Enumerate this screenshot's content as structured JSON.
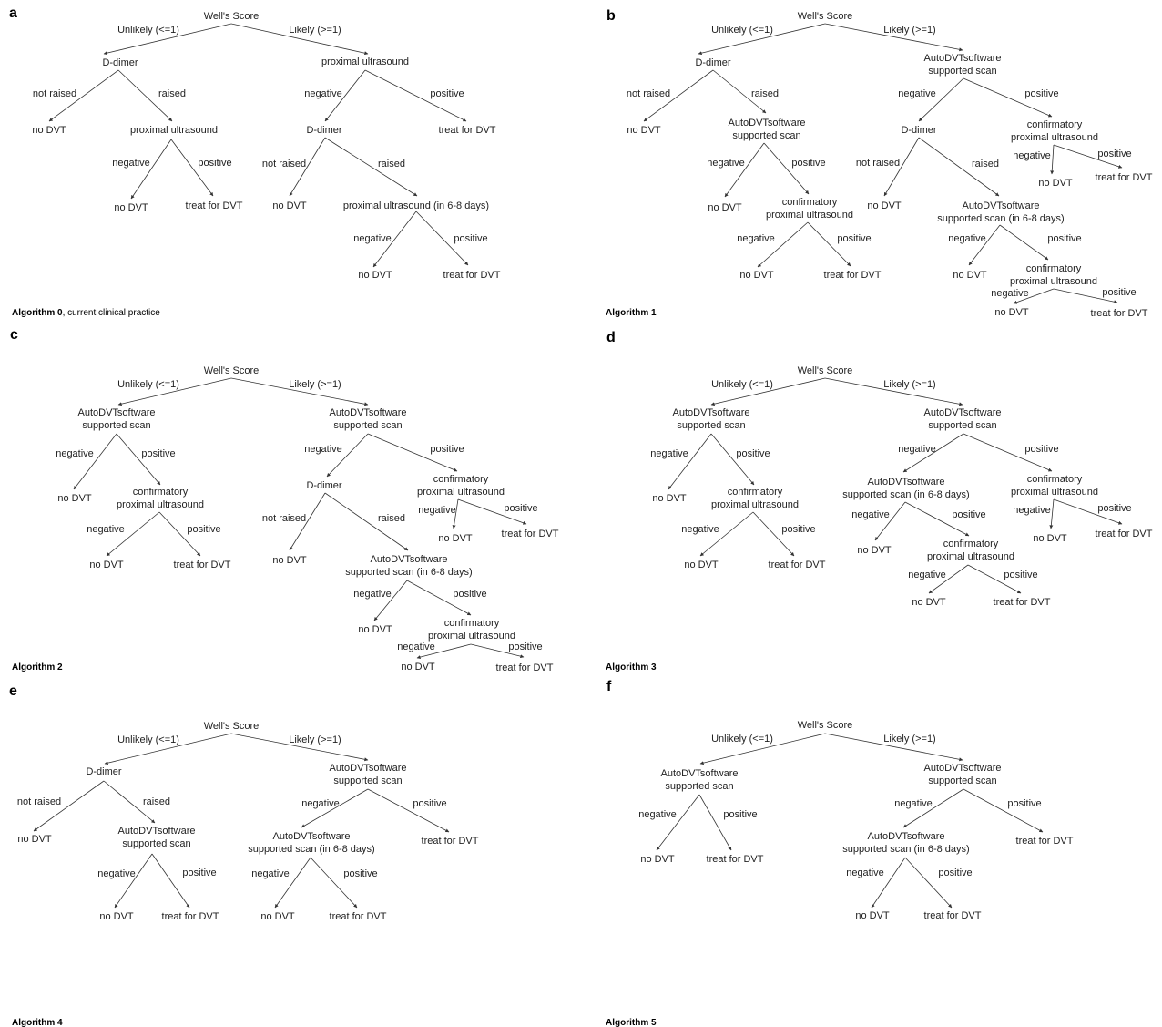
{
  "panels": [
    {
      "letter": "a",
      "caption_bold": "Algorithm 0",
      "caption_rest": ", current clinical practice",
      "nodes": [
        {
          "id": "root",
          "text": "Well's Score"
        },
        {
          "id": "el_unlikely",
          "text": "Unlikely (<=1)"
        },
        {
          "id": "el_likely",
          "text": "Likely (>=1)"
        },
        {
          "id": "ddimer1",
          "text": "D-dimer"
        },
        {
          "id": "el_notraised1",
          "text": "not raised"
        },
        {
          "id": "el_raised1",
          "text": "raised"
        },
        {
          "id": "nodvt1",
          "text": "no DVT"
        },
        {
          "id": "us1",
          "text": "proximal ultrasound"
        },
        {
          "id": "el_neg1",
          "text": "negative"
        },
        {
          "id": "el_pos1",
          "text": "positive"
        },
        {
          "id": "nodvt2",
          "text": "no DVT"
        },
        {
          "id": "treat1",
          "text": "treat for DVT"
        },
        {
          "id": "us2",
          "text": "proximal ultrasound"
        },
        {
          "id": "el_neg2",
          "text": "negative"
        },
        {
          "id": "el_pos2",
          "text": "positive"
        },
        {
          "id": "ddimer2",
          "text": "D-dimer"
        },
        {
          "id": "treat2",
          "text": "treat for DVT"
        },
        {
          "id": "el_notraised2",
          "text": "not raised"
        },
        {
          "id": "el_raised2",
          "text": "raised"
        },
        {
          "id": "nodvt3",
          "text": "no DVT"
        },
        {
          "id": "us3",
          "text": "proximal ultrasound (in 6-8 days)"
        },
        {
          "id": "el_neg3",
          "text": "negative"
        },
        {
          "id": "el_pos3",
          "text": "positive"
        },
        {
          "id": "nodvt4",
          "text": "no DVT"
        },
        {
          "id": "treat3",
          "text": "treat for DVT"
        }
      ]
    },
    {
      "letter": "b",
      "caption_bold": "Algorithm 1",
      "caption_rest": "",
      "nodes": [
        {
          "id": "root",
          "text": "Well's Score"
        },
        {
          "id": "el_unlikely",
          "text": "Unlikely (<=1)"
        },
        {
          "id": "el_likely",
          "text": "Likely (>=1)"
        },
        {
          "id": "ddimer1",
          "text": "D-dimer"
        },
        {
          "id": "el_notraised1",
          "text": "not raised"
        },
        {
          "id": "el_raised1",
          "text": "raised"
        },
        {
          "id": "nodvt1",
          "text": "no DVT"
        },
        {
          "id": "scan1",
          "text": "AutoDVTsoftware\nsupported scan"
        },
        {
          "id": "el_neg1",
          "text": "negative"
        },
        {
          "id": "el_pos1",
          "text": "positive"
        },
        {
          "id": "nodvt2",
          "text": "no DVT"
        },
        {
          "id": "conf1",
          "text": "confirmatory\nproximal ultrasound"
        },
        {
          "id": "el_neg1b",
          "text": "negative"
        },
        {
          "id": "el_pos1b",
          "text": "positive"
        },
        {
          "id": "nodvt3",
          "text": "no DVT"
        },
        {
          "id": "treat1",
          "text": "treat for DVT"
        },
        {
          "id": "scan2",
          "text": "AutoDVTsoftware\nsupported scan"
        },
        {
          "id": "el_neg2",
          "text": "negative"
        },
        {
          "id": "el_pos2",
          "text": "positive"
        },
        {
          "id": "ddimer2",
          "text": "D-dimer"
        },
        {
          "id": "conf2",
          "text": "confirmatory\nproximal ultrasound"
        },
        {
          "id": "el_neg2b",
          "text": "negative"
        },
        {
          "id": "el_pos2b",
          "text": "positive"
        },
        {
          "id": "nodvt4",
          "text": "no DVT"
        },
        {
          "id": "treat2",
          "text": "treat for DVT"
        },
        {
          "id": "el_notraised2",
          "text": "not raised"
        },
        {
          "id": "el_raised2",
          "text": "raised"
        },
        {
          "id": "nodvt5",
          "text": "no DVT"
        },
        {
          "id": "scan3",
          "text": "AutoDVTsoftware\nsupported scan (in 6-8 days)"
        },
        {
          "id": "el_neg3",
          "text": "negative"
        },
        {
          "id": "el_pos3",
          "text": "positive"
        },
        {
          "id": "nodvt6",
          "text": "no DVT"
        },
        {
          "id": "conf3",
          "text": "confirmatory\nproximal ultrasound"
        },
        {
          "id": "el_neg3b",
          "text": "negative"
        },
        {
          "id": "el_pos3b",
          "text": "positive"
        },
        {
          "id": "nodvt7",
          "text": "no DVT"
        },
        {
          "id": "treat3",
          "text": "treat for DVT"
        }
      ]
    },
    {
      "letter": "c",
      "caption_bold": "Algorithm 2",
      "caption_rest": "",
      "nodes": [
        {
          "id": "root",
          "text": "Well's Score"
        },
        {
          "id": "el_unlikely",
          "text": "Unlikely (<=1)"
        },
        {
          "id": "el_likely",
          "text": "Likely (>=1)"
        },
        {
          "id": "scan1",
          "text": "AutoDVTsoftware\nsupported scan"
        },
        {
          "id": "el_neg1",
          "text": "negative"
        },
        {
          "id": "el_pos1",
          "text": "positive"
        },
        {
          "id": "nodvt1",
          "text": "no DVT"
        },
        {
          "id": "conf1",
          "text": "confirmatory\nproximal ultrasound"
        },
        {
          "id": "el_neg1b",
          "text": "negative"
        },
        {
          "id": "el_pos1b",
          "text": "positive"
        },
        {
          "id": "nodvt2",
          "text": "no DVT"
        },
        {
          "id": "treat1",
          "text": "treat for DVT"
        },
        {
          "id": "scan2",
          "text": "AutoDVTsoftware\nsupported scan"
        },
        {
          "id": "el_neg2",
          "text": "negative"
        },
        {
          "id": "el_pos2",
          "text": "positive"
        },
        {
          "id": "ddimer1",
          "text": "D-dimer"
        },
        {
          "id": "conf2",
          "text": "confirmatory\nproximal ultrasound"
        },
        {
          "id": "el_neg2b",
          "text": "negative"
        },
        {
          "id": "el_pos2b",
          "text": "positive"
        },
        {
          "id": "nodvt3",
          "text": "no DVT"
        },
        {
          "id": "treat2",
          "text": "treat for DVT"
        },
        {
          "id": "el_notraised1",
          "text": "not raised"
        },
        {
          "id": "el_raised1",
          "text": "raised"
        },
        {
          "id": "nodvt4",
          "text": "no DVT"
        },
        {
          "id": "scan3",
          "text": "AutoDVTsoftware\nsupported scan (in 6-8 days)"
        },
        {
          "id": "el_neg3",
          "text": "negative"
        },
        {
          "id": "el_pos3",
          "text": "positive"
        },
        {
          "id": "nodvt5",
          "text": "no DVT"
        },
        {
          "id": "conf3",
          "text": "confirmatory\nproximal ultrasound"
        },
        {
          "id": "el_neg3b",
          "text": "negative"
        },
        {
          "id": "el_pos3b",
          "text": "positive"
        },
        {
          "id": "nodvt6",
          "text": "no DVT"
        },
        {
          "id": "treat3",
          "text": "treat for DVT"
        }
      ]
    },
    {
      "letter": "d",
      "caption_bold": "Algorithm 3",
      "caption_rest": "",
      "nodes": [
        {
          "id": "root",
          "text": "Well's Score"
        },
        {
          "id": "el_unlikely",
          "text": "Unlikely (<=1)"
        },
        {
          "id": "el_likely",
          "text": "Likely (>=1)"
        },
        {
          "id": "scan1",
          "text": "AutoDVTsoftware\nsupported scan"
        },
        {
          "id": "el_neg1",
          "text": "negative"
        },
        {
          "id": "el_pos1",
          "text": "positive"
        },
        {
          "id": "nodvt1",
          "text": "no DVT"
        },
        {
          "id": "conf1",
          "text": "confirmatory\nproximal ultrasound"
        },
        {
          "id": "el_neg1b",
          "text": "negative"
        },
        {
          "id": "el_pos1b",
          "text": "positive"
        },
        {
          "id": "nodvt2",
          "text": "no DVT"
        },
        {
          "id": "treat1",
          "text": "treat for DVT"
        },
        {
          "id": "scan2",
          "text": "AutoDVTsoftware\nsupported scan"
        },
        {
          "id": "el_neg2",
          "text": "negative"
        },
        {
          "id": "el_pos2",
          "text": "positive"
        },
        {
          "id": "scan3",
          "text": "AutoDVTsoftware\nsupported scan (in 6-8 days)"
        },
        {
          "id": "conf2",
          "text": "confirmatory\nproximal ultrasound"
        },
        {
          "id": "el_neg2b",
          "text": "negative"
        },
        {
          "id": "el_pos2b",
          "text": "positive"
        },
        {
          "id": "nodvt3",
          "text": "no DVT"
        },
        {
          "id": "treat2",
          "text": "treat for DVT"
        },
        {
          "id": "el_neg3",
          "text": "negative"
        },
        {
          "id": "el_pos3",
          "text": "positive"
        },
        {
          "id": "nodvt4",
          "text": "no DVT"
        },
        {
          "id": "conf3",
          "text": "confirmatory\nproximal ultrasound"
        },
        {
          "id": "el_neg3b",
          "text": "negative"
        },
        {
          "id": "el_pos3b",
          "text": "positive"
        },
        {
          "id": "nodvt5",
          "text": "no DVT"
        },
        {
          "id": "treat3",
          "text": "treat for DVT"
        }
      ]
    },
    {
      "letter": "e",
      "caption_bold": "Algorithm 4",
      "caption_rest": "",
      "nodes": [
        {
          "id": "root",
          "text": "Well's Score"
        },
        {
          "id": "el_unlikely",
          "text": "Unlikely (<=1)"
        },
        {
          "id": "el_likely",
          "text": "Likely (>=1)"
        },
        {
          "id": "ddimer1",
          "text": "D-dimer"
        },
        {
          "id": "el_notraised1",
          "text": "not raised"
        },
        {
          "id": "el_raised1",
          "text": "raised"
        },
        {
          "id": "nodvt1",
          "text": "no DVT"
        },
        {
          "id": "scan1",
          "text": "AutoDVTsoftware\nsupported scan"
        },
        {
          "id": "el_neg1",
          "text": "negative"
        },
        {
          "id": "el_pos1",
          "text": "positive"
        },
        {
          "id": "nodvt2",
          "text": "no DVT"
        },
        {
          "id": "treat1",
          "text": "treat for DVT"
        },
        {
          "id": "scan2",
          "text": "AutoDVTsoftware\nsupported scan"
        },
        {
          "id": "el_neg2",
          "text": "negative"
        },
        {
          "id": "el_pos2",
          "text": "positive"
        },
        {
          "id": "scan3",
          "text": "AutoDVTsoftware\nsupported scan (in 6-8 days)"
        },
        {
          "id": "treat2",
          "text": "treat for DVT"
        },
        {
          "id": "el_neg3",
          "text": "negative"
        },
        {
          "id": "el_pos3",
          "text": "positive"
        },
        {
          "id": "nodvt3",
          "text": "no DVT"
        },
        {
          "id": "treat3",
          "text": "treat for DVT"
        }
      ]
    },
    {
      "letter": "f",
      "caption_bold": "Algorithm 5",
      "caption_rest": "",
      "nodes": [
        {
          "id": "root",
          "text": "Well's Score"
        },
        {
          "id": "el_unlikely",
          "text": "Unlikely (<=1)"
        },
        {
          "id": "el_likely",
          "text": "Likely (>=1)"
        },
        {
          "id": "scan1",
          "text": "AutoDVTsoftware\nsupported scan"
        },
        {
          "id": "el_neg1",
          "text": "negative"
        },
        {
          "id": "el_pos1",
          "text": "positive"
        },
        {
          "id": "nodvt1",
          "text": "no DVT"
        },
        {
          "id": "treat1",
          "text": "treat for DVT"
        },
        {
          "id": "scan2",
          "text": "AutoDVTsoftware\nsupported scan"
        },
        {
          "id": "el_neg2",
          "text": "negative"
        },
        {
          "id": "el_pos2",
          "text": "positive"
        },
        {
          "id": "scan3",
          "text": "AutoDVTsoftware\nsupported scan (in 6-8 days)"
        },
        {
          "id": "treat2",
          "text": "treat for DVT"
        },
        {
          "id": "el_neg3",
          "text": "negative"
        },
        {
          "id": "el_pos3",
          "text": "positive"
        },
        {
          "id": "nodvt2",
          "text": "no DVT"
        },
        {
          "id": "treat3",
          "text": "treat for DVT"
        }
      ]
    }
  ]
}
